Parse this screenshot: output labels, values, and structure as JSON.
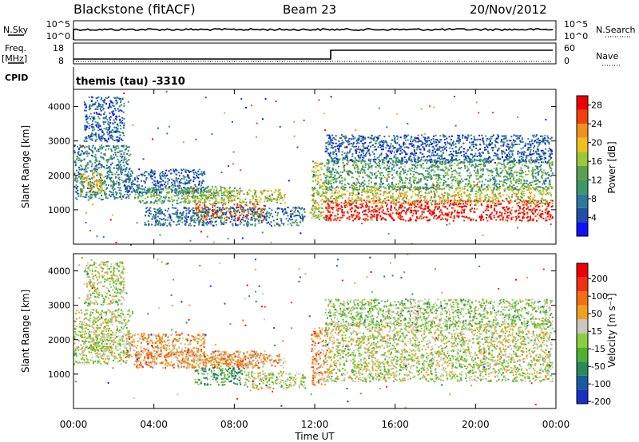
{
  "header": {
    "radar": "Blackstone (fitACF)",
    "beam": "Beam 23",
    "date": "20/Nov/2012"
  },
  "panels": {
    "nsky": {
      "label": "N.Sky",
      "right_label": "N.Search",
      "ticks": [
        "10^5",
        "10^0"
      ]
    },
    "freq": {
      "label": "Freq.",
      "unit": "[MHz]",
      "ticks_left": [
        "18",
        "8"
      ],
      "right_label": "Nave",
      "ticks_right": [
        "60",
        "0"
      ]
    },
    "cpid": {
      "label": "CPID",
      "text": "themis (tau) -3310"
    }
  },
  "colors": {
    "power": [
      "#1010ff",
      "#2050a8",
      "#2c7a9a",
      "#3a9a6a",
      "#5aa050",
      "#9ac838",
      "#f0c020",
      "#f09020",
      "#f04010",
      "#ee0000"
    ],
    "velocity": [
      "#1830c8",
      "#1a5aa0",
      "#2a8a5a",
      "#50b030",
      "#88d040",
      "#c8c8c0",
      "#f0a020",
      "#f07010",
      "#f03010",
      "#ee0000"
    ]
  },
  "chart_data": [
    {
      "type": "heatmap",
      "quantity": "power",
      "xlabel": "",
      "ylabel": "Slant Range [km]",
      "xlim": [
        "00:00",
        "24:00"
      ],
      "ylim": [
        0,
        4500
      ],
      "yticks": [
        "1000",
        "2000",
        "3000",
        "4000"
      ],
      "colorbar": {
        "label": "Power [dB]",
        "ticks": [
          "4",
          "8",
          "12",
          "16",
          "20",
          "24",
          "28"
        ],
        "range": [
          0,
          30
        ]
      },
      "bands": [
        {
          "t0": 0.0,
          "t1": 2.8,
          "r0": 1300,
          "r1": 2900,
          "level": 0.3
        },
        {
          "t0": 0.3,
          "t1": 1.5,
          "r0": 1500,
          "r1": 2100,
          "level": 0.65
        },
        {
          "t0": 2.5,
          "t1": 6.5,
          "r0": 1500,
          "r1": 2200,
          "level": 0.2
        },
        {
          "t0": 3.0,
          "t1": 8.0,
          "r0": 1200,
          "r1": 1700,
          "level": 0.4
        },
        {
          "t0": 5.5,
          "t1": 10.5,
          "r0": 1200,
          "r1": 1600,
          "level": 0.55
        },
        {
          "t0": 6.0,
          "t1": 9.5,
          "r0": 700,
          "r1": 1200,
          "level": 0.8
        },
        {
          "t0": 3.5,
          "t1": 11.5,
          "r0": 550,
          "r1": 1100,
          "level": 0.25
        },
        {
          "t0": 11.8,
          "t1": 12.6,
          "r0": 700,
          "r1": 2400,
          "level": 0.55
        },
        {
          "t0": 12.5,
          "t1": 23.8,
          "r0": 700,
          "r1": 1300,
          "level": 0.95
        },
        {
          "t0": 12.5,
          "t1": 23.8,
          "r0": 1200,
          "r1": 1700,
          "level": 0.6
        },
        {
          "t0": 12.5,
          "t1": 23.8,
          "r0": 1600,
          "r1": 2500,
          "level": 0.4
        },
        {
          "t0": 12.5,
          "t1": 23.8,
          "r0": 2400,
          "r1": 3200,
          "level": 0.2
        },
        {
          "t0": 0.5,
          "t1": 2.5,
          "r0": 3000,
          "r1": 4300,
          "level": 0.2
        }
      ]
    },
    {
      "type": "heatmap",
      "quantity": "velocity",
      "xlabel": "Time UT",
      "ylabel": "Slant Range [km]",
      "xlim": [
        "00:00",
        "24:00"
      ],
      "ylim": [
        0,
        4500
      ],
      "xticks": [
        "00:00",
        "04:00",
        "08:00",
        "12:00",
        "16:00",
        "20:00",
        "00:00"
      ],
      "yticks": [
        "1000",
        "2000",
        "3000",
        "4000"
      ],
      "colorbar": {
        "label": "Velocity [m s⁻¹]",
        "ticks": [
          "200",
          "100",
          "50",
          "15",
          "-15",
          "-50",
          "-100",
          "-200"
        ],
        "range": [
          -250,
          250
        ]
      },
      "bands": [
        {
          "t0": 0.0,
          "t1": 2.8,
          "r0": 1300,
          "r1": 2900,
          "level": 0.5
        },
        {
          "t0": 0.3,
          "t1": 2.0,
          "r0": 1600,
          "r1": 2200,
          "level": 0.5
        },
        {
          "t0": 2.5,
          "t1": 6.5,
          "r0": 1500,
          "r1": 2200,
          "level": 0.65
        },
        {
          "t0": 3.0,
          "t1": 9.5,
          "r0": 1200,
          "r1": 1700,
          "level": 0.68
        },
        {
          "t0": 5.5,
          "t1": 10.5,
          "r0": 1200,
          "r1": 1600,
          "level": 0.65
        },
        {
          "t0": 6.0,
          "t1": 8.5,
          "r0": 700,
          "r1": 1200,
          "level": 0.3
        },
        {
          "t0": 8.5,
          "t1": 11.5,
          "r0": 600,
          "r1": 1100,
          "level": 0.5
        },
        {
          "t0": 11.8,
          "t1": 12.6,
          "r0": 700,
          "r1": 2400,
          "level": 0.7
        },
        {
          "t0": 12.5,
          "t1": 23.8,
          "r0": 800,
          "r1": 1600,
          "level": 0.5
        },
        {
          "t0": 12.5,
          "t1": 23.8,
          "r0": 1600,
          "r1": 2500,
          "level": 0.52
        },
        {
          "t0": 12.5,
          "t1": 23.8,
          "r0": 2400,
          "r1": 3200,
          "level": 0.45
        },
        {
          "t0": 0.5,
          "t1": 2.5,
          "r0": 3000,
          "r1": 4300,
          "level": 0.5
        }
      ]
    }
  ]
}
